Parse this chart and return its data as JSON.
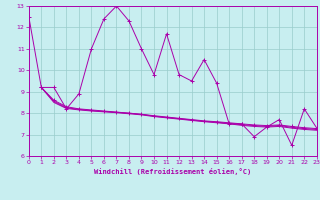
{
  "xlabel": "Windchill (Refroidissement éolien,°C)",
  "background_color": "#c8eef0",
  "line_color": "#aa00aa",
  "grid_color": "#99cccc",
  "x": [
    0,
    1,
    2,
    3,
    4,
    5,
    6,
    7,
    8,
    9,
    10,
    11,
    12,
    13,
    14,
    15,
    16,
    17,
    18,
    19,
    20,
    21,
    22,
    23
  ],
  "series_main": [
    12.5,
    9.2,
    9.2,
    8.2,
    8.9,
    11.0,
    12.4,
    13.0,
    12.3,
    11.0,
    9.8,
    11.7,
    9.8,
    9.5,
    10.5,
    9.4,
    7.5,
    7.5,
    6.9,
    7.35,
    7.7,
    6.5,
    8.2,
    7.3
  ],
  "flat1": [
    9.2,
    8.6,
    8.3,
    8.2,
    8.15,
    8.1,
    8.05,
    8.0,
    7.95,
    7.88,
    7.82,
    7.76,
    7.7,
    7.64,
    7.6,
    7.55,
    7.5,
    7.45,
    7.42,
    7.45,
    7.38,
    7.32,
    7.28
  ],
  "flat2": [
    9.2,
    8.55,
    8.25,
    8.18,
    8.12,
    8.08,
    8.04,
    8.0,
    7.94,
    7.86,
    7.8,
    7.74,
    7.68,
    7.62,
    7.58,
    7.52,
    7.46,
    7.42,
    7.38,
    7.42,
    7.34,
    7.28,
    7.24
  ],
  "flat3": [
    9.2,
    8.5,
    8.22,
    8.15,
    8.1,
    8.06,
    8.02,
    7.97,
    7.92,
    7.84,
    7.78,
    7.72,
    7.66,
    7.6,
    7.55,
    7.5,
    7.43,
    7.38,
    7.35,
    7.38,
    7.3,
    7.24,
    7.2
  ],
  "ylim": [
    6,
    13
  ],
  "xlim": [
    0,
    23
  ]
}
